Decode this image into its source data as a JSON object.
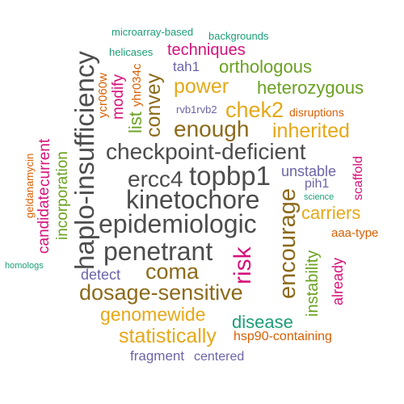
{
  "colors": {
    "dark_gray": "#4d4d4d",
    "brown": "#8c6a1a",
    "gold": "#e6a817",
    "green": "#6aa121",
    "magenta": "#d6127a",
    "purple": "#6b64a8",
    "orange": "#d95f02",
    "teal": "#1b9e77"
  },
  "words": [
    {
      "text": "microarray-based",
      "color": "teal"
    },
    {
      "text": "backgrounds",
      "color": "teal"
    },
    {
      "text": "helicases",
      "color": "teal"
    },
    {
      "text": "techniques",
      "color": "magenta"
    },
    {
      "text": "ycr060w",
      "color": "orange"
    },
    {
      "text": "modify",
      "color": "magenta"
    },
    {
      "text": "yhr034c",
      "color": "orange"
    },
    {
      "text": "tah1",
      "color": "purple"
    },
    {
      "text": "orthologous",
      "color": "green"
    },
    {
      "text": "power",
      "color": "gold"
    },
    {
      "text": "heterozygous",
      "color": "green"
    },
    {
      "text": "list",
      "color": "green"
    },
    {
      "text": "convey",
      "color": "brown"
    },
    {
      "text": "rvb1rvb2",
      "color": "purple"
    },
    {
      "text": "chek2",
      "color": "gold"
    },
    {
      "text": "disruptions",
      "color": "orange"
    },
    {
      "text": "haplo-insufficiency",
      "color": "dark_gray"
    },
    {
      "text": "enough",
      "color": "brown"
    },
    {
      "text": "inherited",
      "color": "gold"
    },
    {
      "text": "geldanamycin",
      "color": "orange"
    },
    {
      "text": "candidate",
      "color": "magenta"
    },
    {
      "text": "current",
      "color": "magenta"
    },
    {
      "text": "incorporation",
      "color": "green"
    },
    {
      "text": "checkpoint-deficient",
      "color": "dark_gray"
    },
    {
      "text": "scaffold",
      "color": "magenta"
    },
    {
      "text": "ercc4",
      "color": "dark_gray"
    },
    {
      "text": "topbp1",
      "color": "dark_gray"
    },
    {
      "text": "unstable",
      "color": "purple"
    },
    {
      "text": "pih1",
      "color": "purple"
    },
    {
      "text": "kinetochore",
      "color": "dark_gray"
    },
    {
      "text": "science",
      "color": "teal"
    },
    {
      "text": "epidemiologic",
      "color": "dark_gray"
    },
    {
      "text": "carriers",
      "color": "gold"
    },
    {
      "text": "encourage",
      "color": "brown"
    },
    {
      "text": "aaa-type",
      "color": "orange"
    },
    {
      "text": "homologs",
      "color": "teal"
    },
    {
      "text": "penetrant",
      "color": "dark_gray"
    },
    {
      "text": "risk",
      "color": "magenta"
    },
    {
      "text": "coma",
      "color": "brown"
    },
    {
      "text": "instability",
      "color": "green"
    },
    {
      "text": "already",
      "color": "magenta"
    },
    {
      "text": "detect",
      "color": "purple"
    },
    {
      "text": "dosage-sensitive",
      "color": "brown"
    },
    {
      "text": "genomewide",
      "color": "gold"
    },
    {
      "text": "disease",
      "color": "teal"
    },
    {
      "text": "statistically",
      "color": "gold"
    },
    {
      "text": "hsp90-containing",
      "color": "orange"
    },
    {
      "text": "fragment",
      "color": "purple"
    },
    {
      "text": "centered",
      "color": "purple"
    }
  ]
}
